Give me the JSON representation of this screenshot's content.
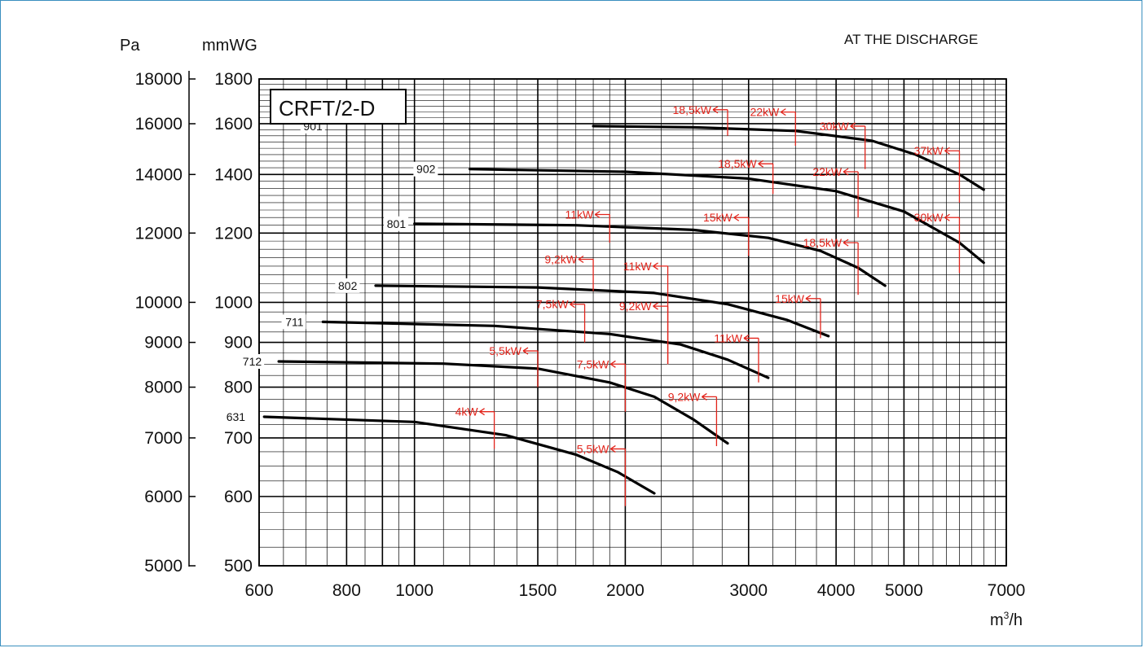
{
  "chart_data": {
    "type": "line",
    "title": "CRFT/2-D",
    "note": "AT THE DISCHARGE",
    "xlabel_main": "m",
    "xlabel_sup": "3",
    "xlabel_tail": "/h",
    "xscale": "log",
    "yscale": "log",
    "xlim": [
      600,
      7000
    ],
    "ylim_pa": [
      5000,
      18000
    ],
    "ylim_mmwg": [
      500,
      1800
    ],
    "y_unit_left": "Pa",
    "y_unit_right": "mmWG",
    "x_ticks": [
      {
        "v": 600,
        "label": "600"
      },
      {
        "v": 800,
        "label": "800"
      },
      {
        "v": 1000,
        "label": "1000"
      },
      {
        "v": 1500,
        "label": "1500"
      },
      {
        "v": 2000,
        "label": "2000"
      },
      {
        "v": 3000,
        "label": "3000"
      },
      {
        "v": 4000,
        "label": "4000"
      },
      {
        "v": 5000,
        "label": "5000"
      },
      {
        "v": 7000,
        "label": "7000"
      }
    ],
    "y_ticks": [
      {
        "mmwg": 1800,
        "pa": "18000",
        "mm": "1800"
      },
      {
        "mmwg": 1600,
        "pa": "16000",
        "mm": "1600"
      },
      {
        "mmwg": 1400,
        "pa": "14000",
        "mm": "1400"
      },
      {
        "mmwg": 1200,
        "pa": "12000",
        "mm": "1200"
      },
      {
        "mmwg": 1000,
        "pa": "10000",
        "mm": "1000"
      },
      {
        "mmwg": 900,
        "pa": "9000",
        "mm": "900"
      },
      {
        "mmwg": 800,
        "pa": "8000",
        "mm": "800"
      },
      {
        "mmwg": 700,
        "pa": "7000",
        "mm": "700"
      },
      {
        "mmwg": 600,
        "pa": "6000",
        "mm": "600"
      },
      {
        "mmwg": 500,
        "pa": "5000",
        "mm": "500"
      }
    ],
    "series": [
      {
        "name": "901",
        "label_x": 745,
        "label_y": 1590,
        "points": [
          [
            1800,
            1590
          ],
          [
            2500,
            1585
          ],
          [
            3500,
            1570
          ],
          [
            4500,
            1530
          ],
          [
            5200,
            1475
          ],
          [
            6000,
            1400
          ],
          [
            6500,
            1345
          ]
        ]
      },
      {
        "name": "902",
        "label_x": 1080,
        "label_y": 1420,
        "points": [
          [
            1200,
            1420
          ],
          [
            2000,
            1410
          ],
          [
            3000,
            1385
          ],
          [
            4000,
            1340
          ],
          [
            5000,
            1270
          ],
          [
            6000,
            1170
          ],
          [
            6500,
            1110
          ]
        ]
      },
      {
        "name": "801",
        "label_x": 980,
        "label_y": 1230,
        "points": [
          [
            1000,
            1230
          ],
          [
            1700,
            1225
          ],
          [
            2500,
            1210
          ],
          [
            3200,
            1185
          ],
          [
            3800,
            1145
          ],
          [
            4300,
            1095
          ],
          [
            4700,
            1045
          ]
        ]
      },
      {
        "name": "802",
        "label_x": 835,
        "label_y": 1045,
        "points": [
          [
            880,
            1045
          ],
          [
            1500,
            1040
          ],
          [
            2200,
            1025
          ],
          [
            2800,
            995
          ],
          [
            3400,
            955
          ],
          [
            3900,
            915
          ]
        ]
      },
      {
        "name": "711",
        "label_x": 700,
        "label_y": 950,
        "points": [
          [
            740,
            950
          ],
          [
            1300,
            940
          ],
          [
            1900,
            920
          ],
          [
            2400,
            895
          ],
          [
            2800,
            860
          ],
          [
            3200,
            820
          ]
        ]
      },
      {
        "name": "712",
        "label_x": 610,
        "label_y": 856,
        "points": [
          [
            640,
            856
          ],
          [
            1100,
            851
          ],
          [
            1500,
            840
          ],
          [
            1900,
            810
          ],
          [
            2200,
            780
          ],
          [
            2500,
            735
          ],
          [
            2800,
            690
          ]
        ]
      },
      {
        "name": "631",
        "label_x": 578,
        "label_y": 740,
        "points": [
          [
            610,
            740
          ],
          [
            1000,
            730
          ],
          [
            1350,
            705
          ],
          [
            1700,
            670
          ],
          [
            1950,
            640
          ],
          [
            2200,
            605
          ]
        ]
      }
    ],
    "power_markers": [
      {
        "label": "18,5kW",
        "x": 2800,
        "y": 1660,
        "drop": 1550
      },
      {
        "label": "22kW",
        "x": 3500,
        "y": 1650,
        "drop": 1510
      },
      {
        "label": "30kW",
        "x": 4400,
        "y": 1590,
        "drop": 1420
      },
      {
        "label": "37kW",
        "x": 6000,
        "y": 1490,
        "drop": 1300
      },
      {
        "label": "18,5kW",
        "x": 3250,
        "y": 1440,
        "drop": 1330
      },
      {
        "label": "22kW",
        "x": 4300,
        "y": 1410,
        "drop": 1250
      },
      {
        "label": "30kW",
        "x": 6000,
        "y": 1250,
        "drop": 1080
      },
      {
        "label": "11kW",
        "x": 1900,
        "y": 1260,
        "drop": 1170
      },
      {
        "label": "15kW",
        "x": 3000,
        "y": 1250,
        "drop": 1130
      },
      {
        "label": "18,5kW",
        "x": 4300,
        "y": 1170,
        "drop": 1020
      },
      {
        "label": "9,2kW",
        "x": 1800,
        "y": 1120,
        "drop": 1030
      },
      {
        "label": "11kW",
        "x": 2300,
        "y": 1100,
        "drop": 850
      },
      {
        "label": "15kW",
        "x": 3800,
        "y": 1010,
        "drop": 910
      },
      {
        "label": "7,5kW",
        "x": 1750,
        "y": 995,
        "drop": 900
      },
      {
        "label": "9,2kW",
        "x": 2300,
        "y": 990,
        "drop": 850
      },
      {
        "label": "11kW",
        "x": 3100,
        "y": 910,
        "drop": 810
      },
      {
        "label": "5,5kW",
        "x": 1500,
        "y": 880,
        "drop": 800
      },
      {
        "label": "7,5kW",
        "x": 2000,
        "y": 850,
        "drop": 750
      },
      {
        "label": "9,2kW",
        "x": 2700,
        "y": 780,
        "drop": 685
      },
      {
        "label": "4kW",
        "x": 1300,
        "y": 750,
        "drop": 680
      },
      {
        "label": "5,5kW",
        "x": 2000,
        "y": 680,
        "drop": 585
      }
    ],
    "grid": true
  }
}
